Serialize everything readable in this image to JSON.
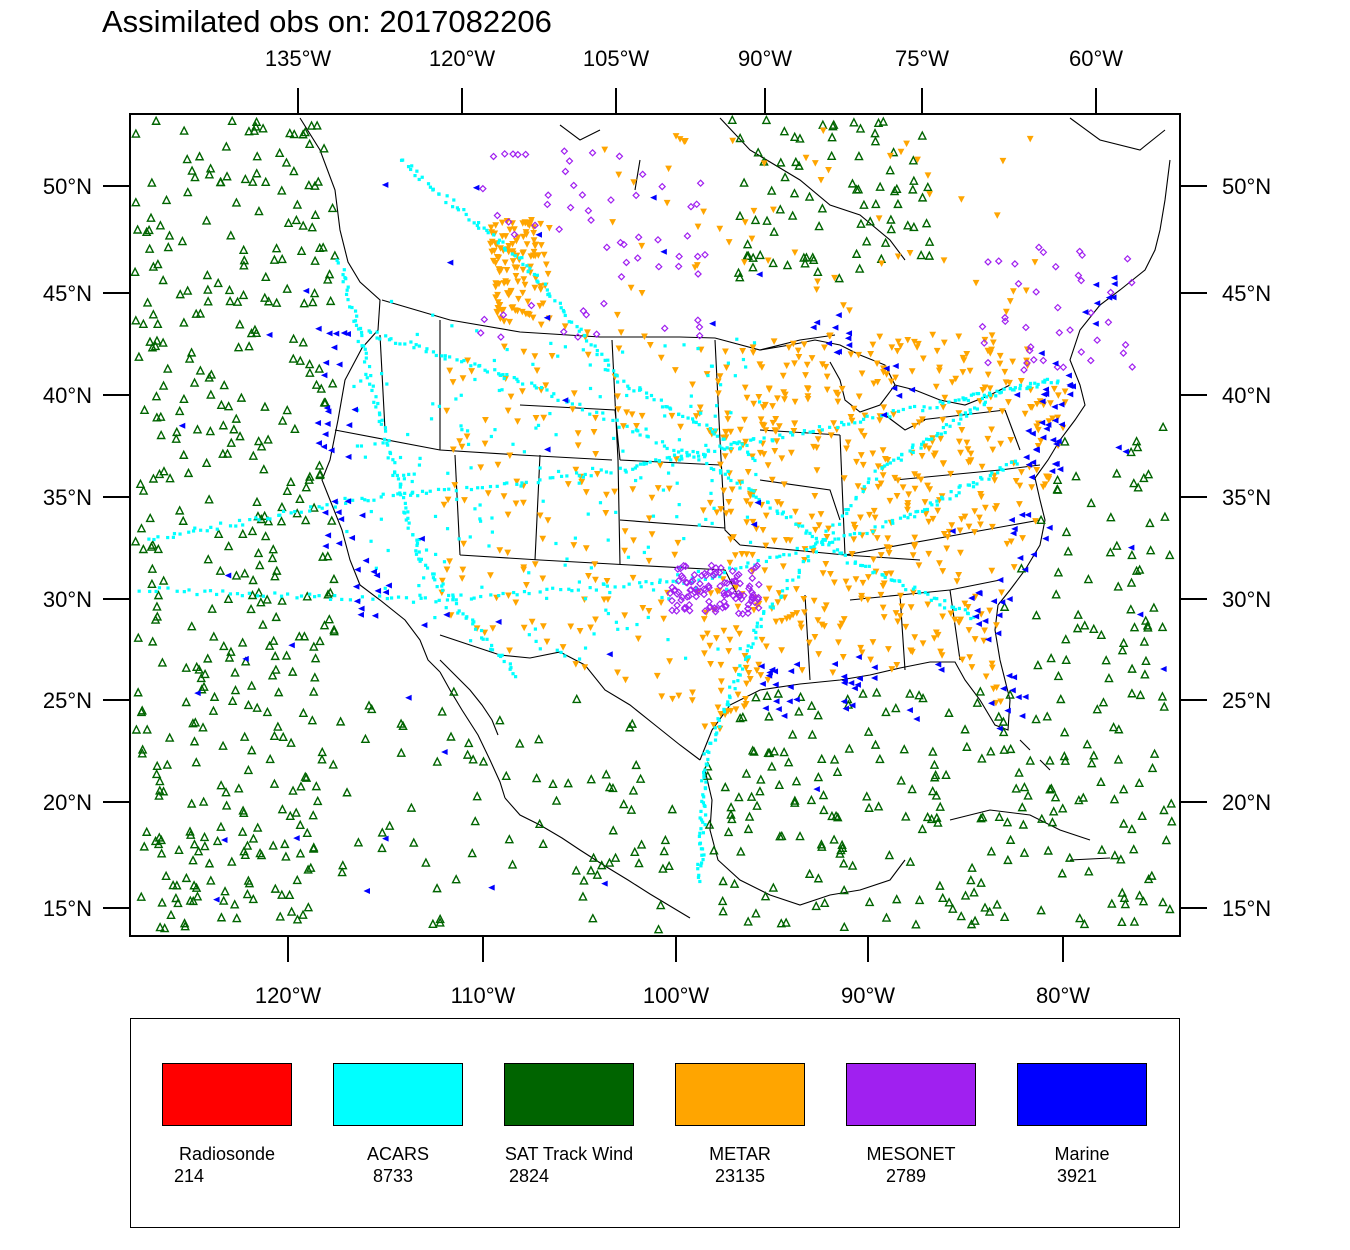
{
  "title": "Assimilated obs on: 2017082206",
  "map": {
    "projection": "lambert-conformal",
    "top_ticks": [
      "135°W",
      "120°W",
      "105°W",
      "90°W",
      "75°W",
      "60°W"
    ],
    "bottom_ticks": [
      "120°W",
      "110°W",
      "100°W",
      "90°W",
      "80°W"
    ],
    "left_ticks": [
      "50°N",
      "45°N",
      "40°N",
      "35°N",
      "30°N",
      "25°N",
      "20°N",
      "15°N"
    ],
    "right_ticks": [
      "50°N",
      "45°N",
      "40°N",
      "35°N",
      "30°N",
      "25°N",
      "20°N",
      "15°N"
    ],
    "marker_symbols": {
      "SAT Track Wind": "open-triangle-up",
      "ACARS": "square-dot",
      "METAR": "filled-triangle-down",
      "MESONET": "open-diamond",
      "Marine": "filled-triangle-left"
    }
  },
  "legend": [
    {
      "label": "Radiosonde",
      "count": "214",
      "color": "#ff0000"
    },
    {
      "label": "ACARS",
      "count": "8733",
      "color": "#00ffff"
    },
    {
      "label": "SAT Track Wind",
      "count": "2824",
      "color": "#006400"
    },
    {
      "label": "METAR",
      "count": "23135",
      "color": "#ffa500"
    },
    {
      "label": "MESONET",
      "count": "2789",
      "color": "#a020f0"
    },
    {
      "label": "Marine",
      "count": "3921",
      "color": "#0000ff"
    }
  ]
}
